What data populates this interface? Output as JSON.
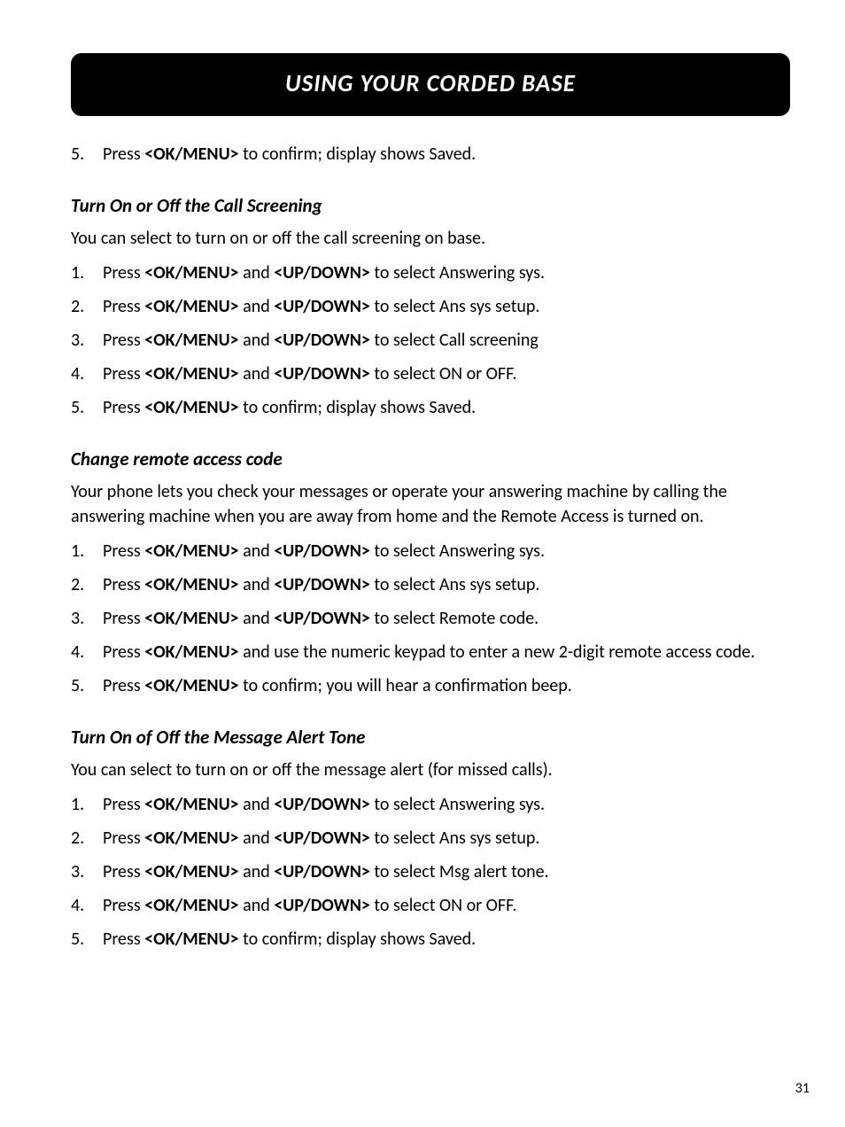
{
  "page_number": "31",
  "header_title": "USING YOUR CORDED BASE",
  "leading_step": {
    "num": "5.",
    "parts": [
      {
        "t": "Press ",
        "b": false
      },
      {
        "t": "<OK/MENU>",
        "b": true
      },
      {
        "t": " to confirm; display shows Saved.",
        "b": false
      }
    ]
  },
  "sections": [
    {
      "heading": "Turn On or Off the Call Screening",
      "intro": "You can select to turn on or off the call screening on base.",
      "steps": [
        {
          "num": "1.",
          "parts": [
            {
              "t": "Press ",
              "b": false
            },
            {
              "t": "<OK/MENU>",
              "b": true
            },
            {
              "t": " and ",
              "b": false
            },
            {
              "t": "<UP/DOWN>",
              "b": true
            },
            {
              "t": " to select Answering sys.",
              "b": false
            }
          ]
        },
        {
          "num": "2.",
          "parts": [
            {
              "t": "Press ",
              "b": false
            },
            {
              "t": "<OK/MENU>",
              "b": true
            },
            {
              "t": " and ",
              "b": false
            },
            {
              "t": "<UP/DOWN>",
              "b": true
            },
            {
              "t": " to select Ans sys setup.",
              "b": false
            }
          ]
        },
        {
          "num": "3.",
          "parts": [
            {
              "t": "Press ",
              "b": false
            },
            {
              "t": "<OK/MENU>",
              "b": true
            },
            {
              "t": " and ",
              "b": false
            },
            {
              "t": "<UP/DOWN>",
              "b": true
            },
            {
              "t": " to select Call screening",
              "b": false
            }
          ]
        },
        {
          "num": "4.",
          "parts": [
            {
              "t": "Press ",
              "b": false
            },
            {
              "t": "<OK/MENU>",
              "b": true
            },
            {
              "t": " and ",
              "b": false
            },
            {
              "t": "<UP/DOWN>",
              "b": true
            },
            {
              "t": " to select ON or OFF.",
              "b": false
            }
          ]
        },
        {
          "num": "5.",
          "parts": [
            {
              "t": "Press ",
              "b": false
            },
            {
              "t": "<OK/MENU>",
              "b": true
            },
            {
              "t": " to confirm; display shows Saved.",
              "b": false
            }
          ]
        }
      ]
    },
    {
      "heading": "Change remote access code",
      "intro": "Your phone lets you check your messages or operate your answering machine by calling the answering machine when you are away from home and the Remote Access is turned on.",
      "steps": [
        {
          "num": "1.",
          "parts": [
            {
              "t": "Press ",
              "b": false
            },
            {
              "t": "<OK/MENU>",
              "b": true
            },
            {
              "t": " and ",
              "b": false
            },
            {
              "t": "<UP/DOWN>",
              "b": true
            },
            {
              "t": " to select Answering sys.",
              "b": false
            }
          ]
        },
        {
          "num": "2.",
          "parts": [
            {
              "t": "Press ",
              "b": false
            },
            {
              "t": "<OK/MENU>",
              "b": true
            },
            {
              "t": " and ",
              "b": false
            },
            {
              "t": "<UP/DOWN>",
              "b": true
            },
            {
              "t": " to select Ans sys setup.",
              "b": false
            }
          ]
        },
        {
          "num": "3.",
          "parts": [
            {
              "t": "Press ",
              "b": false
            },
            {
              "t": "<OK/MENU>",
              "b": true
            },
            {
              "t": " and ",
              "b": false
            },
            {
              "t": "<UP/DOWN>",
              "b": true
            },
            {
              "t": " to select Remote code.",
              "b": false
            }
          ]
        },
        {
          "num": "4.",
          "parts": [
            {
              "t": "Press ",
              "b": false
            },
            {
              "t": "<OK/MENU>",
              "b": true
            },
            {
              "t": " and use the numeric keypad to enter a new 2-digit remote access code.",
              "b": false
            }
          ]
        },
        {
          "num": "5.",
          "parts": [
            {
              "t": "Press ",
              "b": false
            },
            {
              "t": "<OK/MENU>",
              "b": true
            },
            {
              "t": " to confirm; you will hear a confirmation beep.",
              "b": false
            }
          ]
        }
      ]
    },
    {
      "heading": "Turn On of Off the Message Alert Tone",
      "intro": "You can select to turn on or off the message alert (for missed calls).",
      "steps": [
        {
          "num": "1.",
          "parts": [
            {
              "t": "Press ",
              "b": false
            },
            {
              "t": "<OK/MENU>",
              "b": true
            },
            {
              "t": " and ",
              "b": false
            },
            {
              "t": "<UP/DOWN>",
              "b": true
            },
            {
              "t": " to select Answering sys.",
              "b": false
            }
          ]
        },
        {
          "num": "2.",
          "parts": [
            {
              "t": "Press ",
              "b": false
            },
            {
              "t": "<OK/MENU>",
              "b": true
            },
            {
              "t": " and ",
              "b": false
            },
            {
              "t": "<UP/DOWN>",
              "b": true
            },
            {
              "t": " to select Ans sys setup.",
              "b": false
            }
          ]
        },
        {
          "num": "3.",
          "parts": [
            {
              "t": "Press ",
              "b": false
            },
            {
              "t": "<OK/MENU>",
              "b": true
            },
            {
              "t": " and ",
              "b": false
            },
            {
              "t": "<UP/DOWN>",
              "b": true
            },
            {
              "t": " to select Msg alert tone.",
              "b": false
            }
          ]
        },
        {
          "num": "4.",
          "parts": [
            {
              "t": "Press ",
              "b": false
            },
            {
              "t": "<OK/MENU>",
              "b": true
            },
            {
              "t": " and ",
              "b": false
            },
            {
              "t": "<UP/DOWN>",
              "b": true
            },
            {
              "t": " to select ON or OFF.",
              "b": false
            }
          ]
        },
        {
          "num": "5.",
          "parts": [
            {
              "t": "Press ",
              "b": false
            },
            {
              "t": "<OK/MENU>",
              "b": true
            },
            {
              "t": " to confirm; display shows Saved.",
              "b": false
            }
          ]
        }
      ]
    }
  ]
}
